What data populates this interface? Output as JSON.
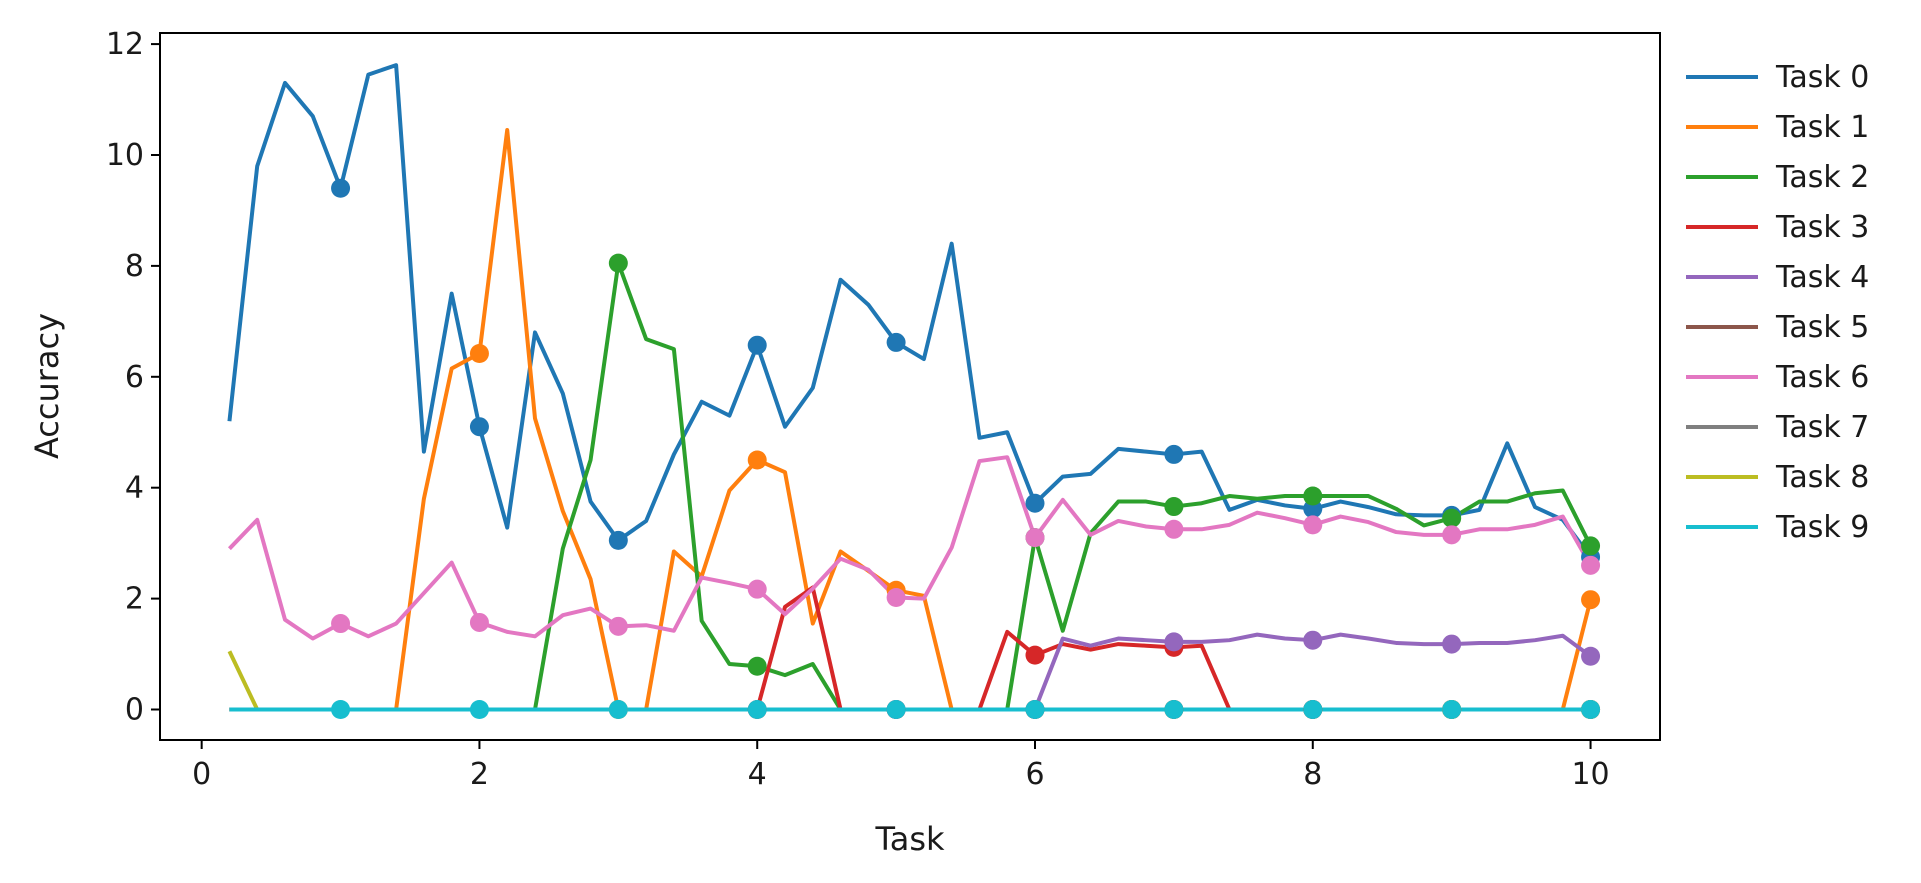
{
  "chart_data": {
    "type": "line",
    "title": "",
    "xlabel": "Task",
    "ylabel": "Accuracy",
    "xlim": [
      -0.3,
      10.5
    ],
    "ylim": [
      -0.55,
      12.2
    ],
    "xticks": [
      0,
      2,
      4,
      6,
      8,
      10
    ],
    "yticks": [
      0,
      2,
      4,
      6,
      8,
      10,
      12
    ],
    "grid": false,
    "legend_position": "outside-right",
    "x": [
      0.2,
      0.4,
      0.6,
      0.8,
      1.0,
      1.2,
      1.4,
      1.6,
      1.8,
      2.0,
      2.2,
      2.4,
      2.6,
      2.8,
      3.0,
      3.2,
      3.4,
      3.6,
      3.8,
      4.0,
      4.2,
      4.4,
      4.6,
      4.8,
      5.0,
      5.2,
      5.4,
      5.6,
      5.8,
      6.0,
      6.2,
      6.4,
      6.6,
      6.8,
      7.0,
      7.2,
      7.4,
      7.6,
      7.8,
      8.0,
      8.2,
      8.4,
      8.6,
      8.8,
      9.0,
      9.2,
      9.4,
      9.6,
      9.8,
      10.0
    ],
    "marker_x": [
      1,
      2,
      3,
      4,
      5,
      6,
      7,
      8,
      9,
      10
    ],
    "series": [
      {
        "name": "Task 0",
        "color": "#1f77b4",
        "values": [
          5.2,
          9.8,
          11.3,
          10.7,
          9.4,
          11.45,
          11.62,
          4.65,
          7.5,
          5.1,
          3.28,
          6.8,
          5.7,
          3.75,
          3.05,
          3.4,
          4.6,
          5.55,
          5.3,
          6.57,
          5.1,
          5.8,
          7.75,
          7.3,
          6.62,
          6.32,
          8.4,
          4.9,
          5.0,
          3.72,
          4.2,
          4.25,
          4.7,
          4.65,
          4.6,
          4.65,
          3.6,
          3.78,
          3.68,
          3.62,
          3.75,
          3.65,
          3.52,
          3.5,
          3.5,
          3.6,
          4.8,
          3.65,
          3.42,
          2.75
        ]
      },
      {
        "name": "Task 1",
        "color": "#ff7f0e",
        "values": [
          0,
          0,
          0,
          0,
          0,
          0,
          0,
          3.8,
          6.15,
          6.42,
          10.45,
          5.25,
          3.58,
          2.35,
          0,
          0,
          2.85,
          2.4,
          3.95,
          4.5,
          4.28,
          1.55,
          2.85,
          2.5,
          2.15,
          2.05,
          0,
          0,
          0,
          0,
          0,
          0,
          0,
          0,
          0,
          0,
          0,
          0,
          0,
          0,
          0,
          0,
          0,
          0,
          0,
          0,
          0,
          0,
          0,
          1.98
        ]
      },
      {
        "name": "Task 2",
        "color": "#2ca02c",
        "values": [
          0,
          0,
          0,
          0,
          0,
          0,
          0,
          0,
          0,
          0,
          0,
          0,
          2.9,
          4.5,
          8.05,
          6.68,
          6.5,
          1.6,
          0.82,
          0.78,
          0.62,
          0.82,
          0,
          0,
          0,
          0,
          0,
          0,
          0,
          3.1,
          1.42,
          3.18,
          3.75,
          3.75,
          3.66,
          3.72,
          3.85,
          3.8,
          3.85,
          3.85,
          3.85,
          3.85,
          3.62,
          3.32,
          3.45,
          3.75,
          3.75,
          3.9,
          3.95,
          2.95
        ]
      },
      {
        "name": "Task 3",
        "color": "#d62728",
        "values": [
          0,
          0,
          0,
          0,
          0,
          0,
          0,
          0,
          0,
          0,
          0,
          0,
          0,
          0,
          0,
          0,
          0,
          0,
          0,
          0,
          1.85,
          2.2,
          0,
          0,
          0,
          0,
          0,
          0,
          1.4,
          0.98,
          1.18,
          1.08,
          1.18,
          1.15,
          1.12,
          1.15,
          0,
          0,
          0,
          0,
          0,
          0,
          0,
          0,
          0,
          0,
          0,
          0,
          0,
          0
        ]
      },
      {
        "name": "Task 4",
        "color": "#9467bd",
        "values": [
          0,
          0,
          0,
          0,
          0,
          0,
          0,
          0,
          0,
          0,
          0,
          0,
          0,
          0,
          0,
          0,
          0,
          0,
          0,
          0,
          0,
          0,
          0,
          0,
          0,
          0,
          0,
          0,
          0,
          0,
          1.28,
          1.15,
          1.28,
          1.25,
          1.22,
          1.22,
          1.25,
          1.35,
          1.28,
          1.25,
          1.35,
          1.28,
          1.2,
          1.18,
          1.18,
          1.2,
          1.2,
          1.25,
          1.33,
          0.96
        ]
      },
      {
        "name": "Task 5",
        "color": "#8c564b",
        "values": [
          0,
          0,
          0,
          0,
          0,
          0,
          0,
          0,
          0,
          0,
          0,
          0,
          0,
          0,
          0,
          0,
          0,
          0,
          0,
          0,
          0,
          0,
          0,
          0,
          0,
          0,
          0,
          0,
          0,
          0,
          0,
          0,
          0,
          0,
          0,
          0,
          0,
          0,
          0,
          0,
          0,
          0,
          0,
          0,
          0,
          0,
          0,
          0,
          0,
          0
        ]
      },
      {
        "name": "Task 6",
        "color": "#e377c2",
        "values": [
          2.9,
          3.42,
          1.62,
          1.28,
          1.55,
          1.32,
          1.55,
          2.1,
          2.65,
          1.57,
          1.4,
          1.32,
          1.7,
          1.82,
          1.5,
          1.52,
          1.42,
          2.38,
          2.28,
          2.17,
          1.72,
          2.18,
          2.72,
          2.52,
          2.02,
          2.0,
          2.92,
          4.48,
          4.55,
          3.1,
          3.78,
          3.15,
          3.4,
          3.3,
          3.25,
          3.25,
          3.33,
          3.55,
          3.45,
          3.33,
          3.48,
          3.38,
          3.2,
          3.15,
          3.15,
          3.25,
          3.25,
          3.33,
          3.48,
          2.6
        ]
      },
      {
        "name": "Task 7",
        "color": "#7f7f7f",
        "values": [
          0,
          0,
          0,
          0,
          0,
          0,
          0,
          0,
          0,
          0,
          0,
          0,
          0,
          0,
          0,
          0,
          0,
          0,
          0,
          0,
          0,
          0,
          0,
          0,
          0,
          0,
          0,
          0,
          0,
          0,
          0,
          0,
          0,
          0,
          0,
          0,
          0,
          0,
          0,
          0,
          0,
          0,
          0,
          0,
          0,
          0,
          0,
          0,
          0,
          0
        ]
      },
      {
        "name": "Task 8",
        "color": "#bcbd22",
        "values": [
          1.05,
          0,
          0,
          0,
          0,
          0,
          0,
          0,
          0,
          0,
          0,
          0,
          0,
          0,
          0,
          0,
          0,
          0,
          0,
          0,
          0,
          0,
          0,
          0,
          0,
          0,
          0,
          0,
          0,
          0,
          0,
          0,
          0,
          0,
          0,
          0,
          0,
          0,
          0,
          0,
          0,
          0,
          0,
          0,
          0,
          0,
          0,
          0,
          0,
          0
        ]
      },
      {
        "name": "Task 9",
        "color": "#17becf",
        "values": [
          0,
          0,
          0,
          0,
          0,
          0,
          0,
          0,
          0,
          0,
          0,
          0,
          0,
          0,
          0,
          0,
          0,
          0,
          0,
          0,
          0,
          0,
          0,
          0,
          0,
          0,
          0,
          0,
          0,
          0,
          0,
          0,
          0,
          0,
          0,
          0,
          0,
          0,
          0,
          0,
          0,
          0,
          0,
          0,
          0,
          0,
          0,
          0,
          0,
          0
        ]
      }
    ],
    "markers": [
      {
        "series": "Task 0",
        "x": [
          1,
          2,
          3,
          4,
          5,
          6,
          7,
          8,
          9,
          10
        ],
        "y": [
          9.4,
          5.1,
          3.05,
          6.57,
          6.62,
          3.72,
          4.6,
          3.62,
          3.5,
          2.75
        ]
      },
      {
        "series": "Task 1",
        "x": [
          2,
          3,
          4,
          5,
          6,
          7,
          8,
          9,
          10
        ],
        "y": [
          6.42,
          0,
          4.5,
          2.15,
          0,
          0,
          0,
          0,
          1.98
        ]
      },
      {
        "series": "Task 2",
        "x": [
          3,
          4,
          5,
          6,
          7,
          8,
          9,
          10
        ],
        "y": [
          8.05,
          0.78,
          0,
          3.1,
          3.66,
          3.85,
          3.45,
          2.95
        ]
      },
      {
        "series": "Task 3",
        "x": [
          4,
          5,
          6,
          7,
          8,
          9,
          10
        ],
        "y": [
          0,
          0,
          0.98,
          1.12,
          0,
          0,
          0
        ]
      },
      {
        "series": "Task 4",
        "x": [
          5,
          6,
          7,
          8,
          9,
          10
        ],
        "y": [
          0,
          0,
          1.22,
          1.25,
          1.18,
          0.96
        ]
      },
      {
        "series": "Task 5",
        "x": [
          6,
          7,
          8,
          9,
          10
        ],
        "y": [
          0,
          0,
          0,
          0,
          0
        ]
      },
      {
        "series": "Task 6",
        "x": [
          1,
          2,
          3,
          4,
          5,
          6,
          7,
          8,
          9,
          10
        ],
        "y": [
          1.55,
          1.57,
          1.5,
          2.17,
          2.02,
          3.1,
          3.25,
          3.33,
          3.15,
          2.6
        ]
      },
      {
        "series": "Task 7",
        "x": [
          8,
          9,
          10
        ],
        "y": [
          0,
          0,
          0
        ]
      },
      {
        "series": "Task 8",
        "x": [
          9,
          10
        ],
        "y": [
          0,
          0
        ]
      },
      {
        "series": "Task 9",
        "x": [
          1,
          2,
          3,
          4,
          5,
          6,
          7,
          8,
          9,
          10
        ],
        "y": [
          0,
          0,
          0,
          0,
          0,
          0,
          0,
          0,
          0,
          0
        ]
      }
    ]
  }
}
